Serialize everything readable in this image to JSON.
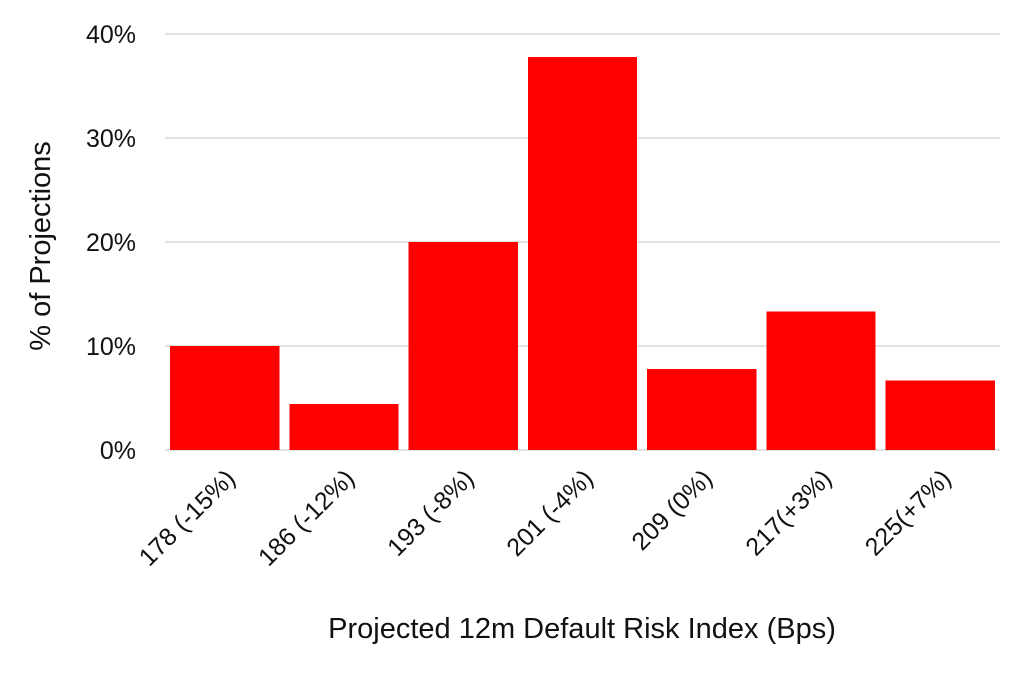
{
  "chart_data": {
    "type": "bar",
    "title": "",
    "xlabel": "Projected 12m Default Risk Index (Bps)",
    "ylabel": "% of Projections",
    "categories": [
      "178 (-15%)",
      "186 (-12%)",
      "193 (-8%)",
      "201 (-4%)",
      "209 (0%)",
      "217(+3%)",
      "225(+7%)"
    ],
    "values": [
      10.0,
      4.4,
      20.0,
      37.8,
      7.8,
      13.3,
      6.7
    ],
    "value_unit": "%",
    "ylim": [
      0,
      40
    ],
    "yticks": [
      0,
      10,
      20,
      30,
      40
    ],
    "ytick_labels": [
      "0%",
      "10%",
      "20%",
      "30%",
      "40%"
    ],
    "grid": "horizontal",
    "legend": "none",
    "bar_color": "#ff0000"
  }
}
